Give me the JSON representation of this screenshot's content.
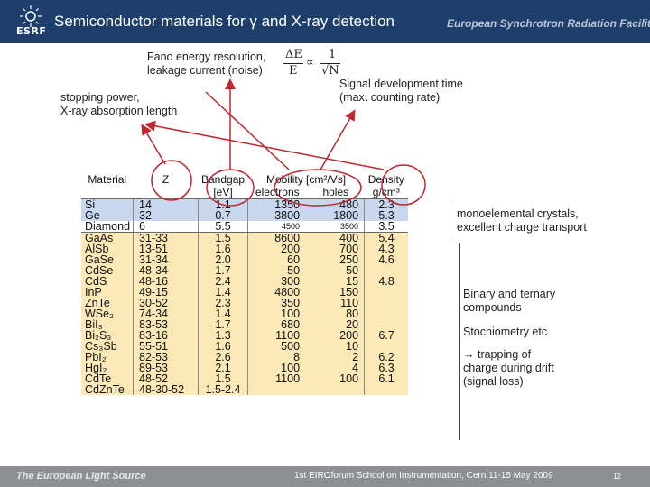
{
  "header": {
    "logo_text": "ESRF",
    "title": "Semiconductor materials for γ and  X-ray  detection",
    "org": "European Synchrotron Radiation Facility"
  },
  "annotations": {
    "fano_line1": "Fano energy resolution,",
    "fano_line2": "leakage current (noise)",
    "formula_num_left": "ΔE",
    "formula_den_left": "E",
    "formula_prop": "∝",
    "formula_num_right": "1",
    "formula_den_right": "√N",
    "stopping_line1": "stopping power,",
    "stopping_line2": "X-ray absorption length",
    "signal_line1": "Signal development time",
    "signal_line2": "(max. counting rate)",
    "mono_line1": "monoelemental crystals,",
    "mono_line2": "excellent charge transport",
    "binary_line1": "Binary and ternary",
    "binary_line2": "compounds",
    "stoich": "Stochiometry etc",
    "trapping_line1": "→ trapping of",
    "trapping_line2": "charge during drift",
    "trapping_line3": "(signal loss)"
  },
  "table": {
    "headers": {
      "material": "Material",
      "z": "Z",
      "bandgap": "Bandgap",
      "bandgap_unit": "[eV]",
      "mobility": "Mobility [cm²/Vs]",
      "electrons": "electrons",
      "holes": "holes",
      "density": "Density",
      "density_unit": "g/cm³"
    },
    "rows": [
      {
        "material": "Si",
        "z": "14",
        "gap": "1.1",
        "e": "1350",
        "h": "480",
        "d": "2.3"
      },
      {
        "material": "Ge",
        "z": "32",
        "gap": "0.7",
        "e": "3800",
        "h": "1800",
        "d": "5.3"
      },
      {
        "material": "Diamond",
        "z": "6",
        "gap": "5.5",
        "e": "4500",
        "h": "3500",
        "d": "3.5"
      },
      {
        "material": "GaAs",
        "z": "31-33",
        "gap": "1.5",
        "e": "8600",
        "h": "400",
        "d": "5.4"
      },
      {
        "material": "AlSb",
        "z": "13-51",
        "gap": "1.6",
        "e": "200",
        "h": "700",
        "d": "4.3"
      },
      {
        "material": "GaSe",
        "z": "31-34",
        "gap": "2.0",
        "e": "60",
        "h": "250",
        "d": "4.6"
      },
      {
        "material": "CdSe",
        "z": "48-34",
        "gap": "1.7",
        "e": "50",
        "h": "50",
        "d": ""
      },
      {
        "material": "CdS",
        "z": "48-16",
        "gap": "2.4",
        "e": "300",
        "h": "15",
        "d": "4.8"
      },
      {
        "material": "InP",
        "z": "49-15",
        "gap": "1.4",
        "e": "4800",
        "h": "150",
        "d": ""
      },
      {
        "material": "ZnTe",
        "z": "30-52",
        "gap": "2.3",
        "e": "350",
        "h": "110",
        "d": ""
      },
      {
        "material": "WSe₂",
        "z": "74-34",
        "gap": "1.4",
        "e": "100",
        "h": "80",
        "d": ""
      },
      {
        "material": "BiI₃",
        "z": "83-53",
        "gap": "1.7",
        "e": "680",
        "h": "20",
        "d": ""
      },
      {
        "material": "Bi₂S₃",
        "z": "83-16",
        "gap": "1.3",
        "e": "1100",
        "h": "200",
        "d": "6.7"
      },
      {
        "material": "Cs₃Sb",
        "z": "55-51",
        "gap": "1.6",
        "e": "500",
        "h": "10",
        "d": ""
      },
      {
        "material": "PbI₂",
        "z": "82-53",
        "gap": "2.6",
        "e": "8",
        "h": "2",
        "d": "6.2"
      },
      {
        "material": "HgI₂",
        "z": "89-53",
        "gap": "2.1",
        "e": "100",
        "h": "4",
        "d": "6.3"
      },
      {
        "material": "CdTe",
        "z": "48-52",
        "gap": "1.5",
        "e": "1100",
        "h": "100",
        "d": "6.1"
      },
      {
        "material": "CdZnTe",
        "z": "48-30-52",
        "gap": "1.5-2.4",
        "e": "",
        "h": "",
        "d": ""
      }
    ]
  },
  "footer": {
    "left": "The European Light Source",
    "center": "1st EIROforum School on Instrumentation, Cern 11-15 May 2009",
    "page": "12"
  },
  "colors": {
    "header_bg": "#1e3f6c",
    "footer_bg": "#8c8f93",
    "row_blue": "#c8d6ee",
    "row_tan": "#fbe9b8",
    "arrow_red": "#c0282d"
  }
}
